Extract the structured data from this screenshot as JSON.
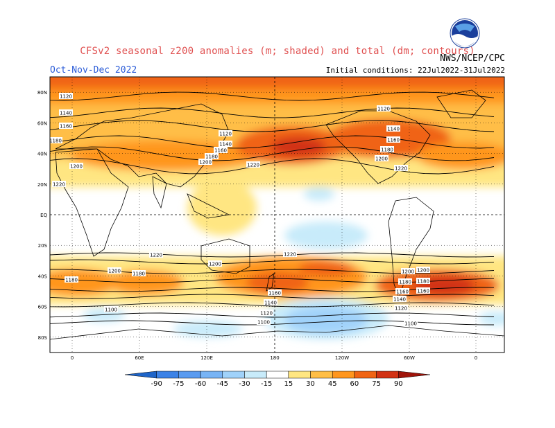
{
  "header": {
    "title": "CFSv2 seasonal z200 anomalies (m; shaded) and total (dm; contours)",
    "agency": "NWS/NCEP/CPC",
    "season": "Oct-Nov-Dec 2022",
    "initial_conditions": "Initial conditions: 22Jul2022-31Jul2022",
    "logo_text": "NOAA"
  },
  "map": {
    "projection": "cylindrical equidistant, centered on 180",
    "lat_labels": [
      "80N",
      "60N",
      "40N",
      "20N",
      "EQ",
      "20S",
      "40S",
      "60S",
      "80S"
    ],
    "lon_labels": [
      "0",
      "60E",
      "120E",
      "180",
      "120W",
      "60W",
      "0"
    ],
    "grid": "dotted",
    "contour_labels": [
      "1120",
      "1140",
      "1160",
      "1180",
      "1200",
      "1220",
      "1120",
      "1140",
      "1160",
      "1180",
      "1200",
      "1220",
      "1120",
      "1140",
      "1160",
      "1180",
      "1200",
      "1220",
      "1220",
      "1200",
      "1200",
      "1180",
      "1160",
      "1140",
      "1120",
      "1100",
      "1220",
      "1200",
      "1180",
      "1160",
      "1140",
      "1120",
      "1100",
      "1180",
      "1200",
      "1180",
      "1160",
      "1100"
    ]
  },
  "colorbar": {
    "labels": [
      "-90",
      "-75",
      "-60",
      "-45",
      "-30",
      "-15",
      "15",
      "30",
      "45",
      "60",
      "75",
      "90"
    ],
    "colors": [
      "#1e64c8",
      "#3c82e6",
      "#5a9bf0",
      "#78b4f5",
      "#a0d2fa",
      "#c8ebfa",
      "#ffffff",
      "#ffe682",
      "#ffbe46",
      "#ff961e",
      "#f06414",
      "#d23214",
      "#a0140a"
    ]
  },
  "colors": {
    "title": "#e05050",
    "subtitle": "#2a5bd7",
    "pos_levels": [
      "#ffe682",
      "#ffbe46",
      "#ff961e",
      "#f06414",
      "#d23214",
      "#a0140a"
    ],
    "neg_levels": [
      "#c8ebfa",
      "#a0d2fa",
      "#78b4f5"
    ]
  }
}
